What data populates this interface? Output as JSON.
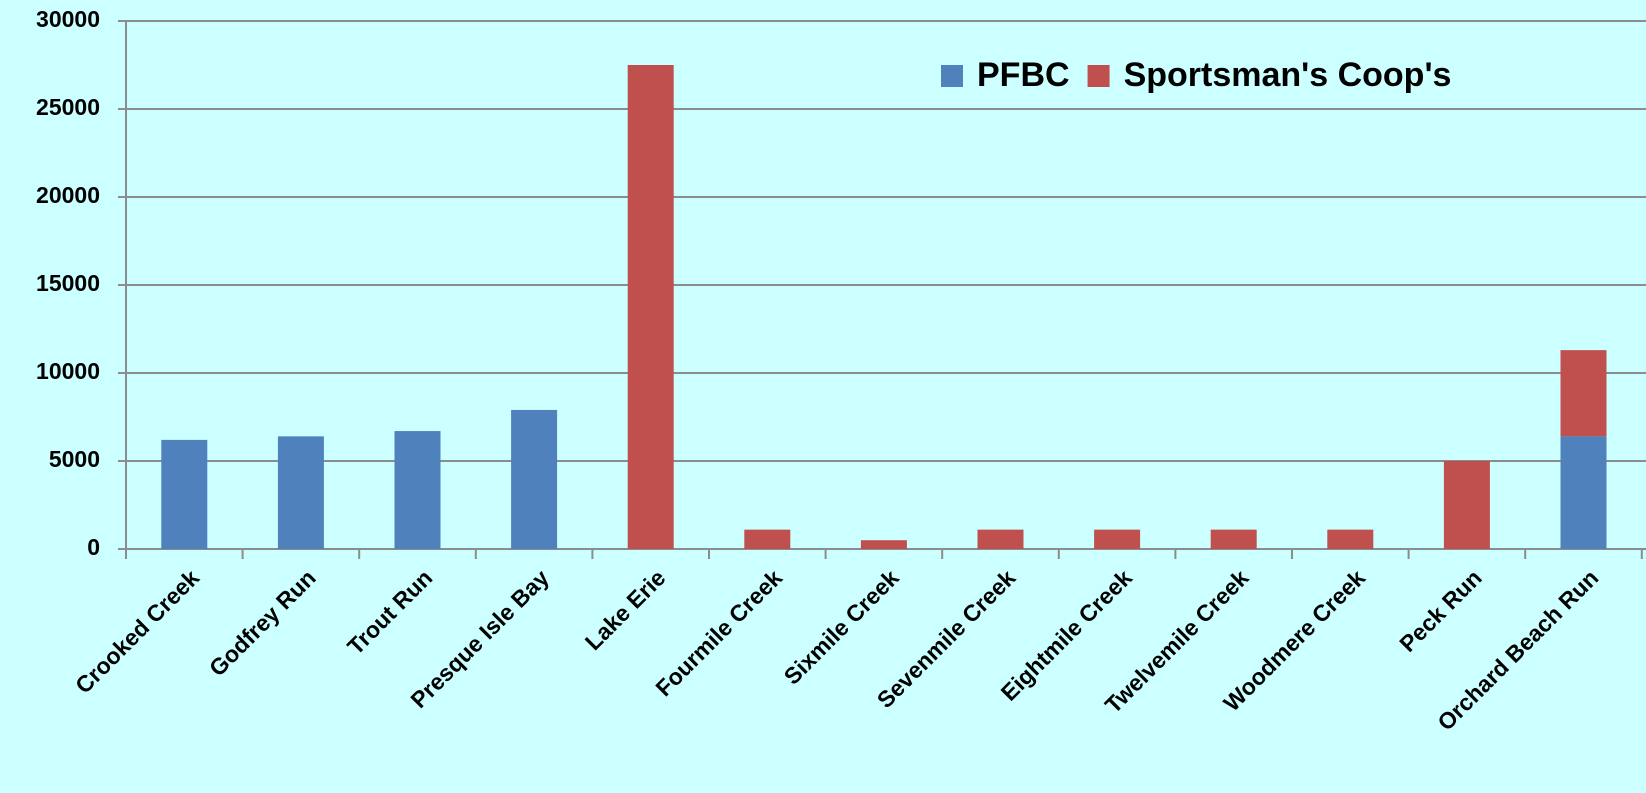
{
  "chart_data": {
    "type": "stacked_bar",
    "categories": [
      "Crooked Creek",
      "Godfrey Run",
      "Trout Run",
      "Presque Isle Bay",
      "Lake Erie",
      "Fourmile Creek",
      "Sixmile Creek",
      "Sevenmile Creek",
      "Eightmile Creek",
      "Twelvemile Creek",
      "Woodmere Creek",
      "Peck Run",
      "Orchard Beach Run"
    ],
    "series": [
      {
        "name": "PFBC",
        "color": "#4f81bd",
        "values": [
          6200,
          6400,
          6700,
          7900,
          null,
          null,
          null,
          null,
          null,
          null,
          null,
          null,
          6400
        ]
      },
      {
        "name": "Sportsman's Coop's",
        "color": "#c0504d",
        "values": [
          null,
          null,
          null,
          null,
          27500,
          1100,
          500,
          1100,
          1100,
          1100,
          1100,
          5000,
          4900
        ]
      }
    ],
    "ylim": [
      0,
      30000
    ],
    "yticks": [
      0,
      5000,
      10000,
      15000,
      20000,
      25000,
      30000
    ],
    "grid": true,
    "legend": "top"
  }
}
